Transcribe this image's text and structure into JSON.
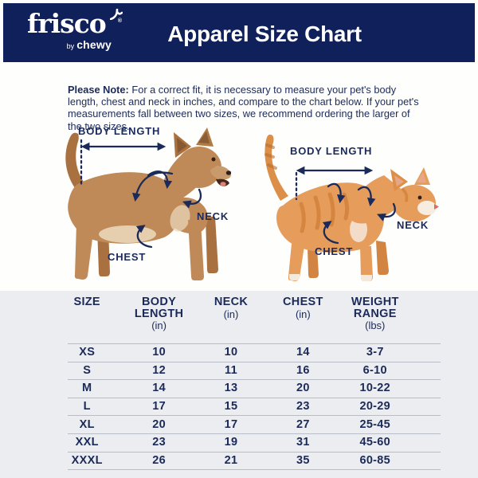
{
  "brand": {
    "logo_text": "frisco",
    "registered_mark": "®",
    "byline_prefix": "by",
    "byline_brand": "chewy"
  },
  "header": {
    "title": "Apparel Size Chart"
  },
  "note": {
    "label": "Please Note:",
    "text": " For a correct fit, it is necessary to measure your pet's body length, chest and neck in inches, and compare to the chart below. If your pet's measurements fall between two sizes, we recommend ordering the larger of the two sizes."
  },
  "diagrams": {
    "dog": {
      "animal": "dog",
      "body_length_label": "BODY LENGTH",
      "neck_label": "NECK",
      "chest_label": "CHEST"
    },
    "cat": {
      "animal": "cat",
      "body_length_label": "BODY LENGTH",
      "neck_label": "NECK",
      "chest_label": "CHEST"
    }
  },
  "size_chart": {
    "columns": [
      {
        "label": "SIZE",
        "unit": ""
      },
      {
        "label": "BODY LENGTH",
        "unit": "(in)"
      },
      {
        "label": "NECK",
        "unit": "(in)"
      },
      {
        "label": "CHEST",
        "unit": "(in)"
      },
      {
        "label": "WEIGHT RANGE",
        "unit": "(lbs)"
      }
    ],
    "rows": [
      {
        "size": "XS",
        "body_length": "10",
        "neck": "10",
        "chest": "14",
        "weight_range": "3-7"
      },
      {
        "size": "S",
        "body_length": "12",
        "neck": "11",
        "chest": "16",
        "weight_range": "6-10"
      },
      {
        "size": "M",
        "body_length": "14",
        "neck": "13",
        "chest": "20",
        "weight_range": "10-22"
      },
      {
        "size": "L",
        "body_length": "17",
        "neck": "15",
        "chest": "23",
        "weight_range": "20-29"
      },
      {
        "size": "XL",
        "body_length": "20",
        "neck": "17",
        "chest": "27",
        "weight_range": "25-45"
      },
      {
        "size": "XXL",
        "body_length": "23",
        "neck": "19",
        "chest": "31",
        "weight_range": "45-60"
      },
      {
        "size": "XXXL",
        "body_length": "26",
        "neck": "21",
        "chest": "35",
        "weight_range": "60-85"
      }
    ]
  },
  "chart_data": {
    "type": "table",
    "title": "Apparel Size Chart",
    "columns": [
      "SIZE",
      "BODY LENGTH (in)",
      "NECK (in)",
      "CHEST (in)",
      "WEIGHT RANGE (lbs)"
    ],
    "rows": [
      [
        "XS",
        "10",
        "10",
        "14",
        "3-7"
      ],
      [
        "S",
        "12",
        "11",
        "16",
        "6-10"
      ],
      [
        "M",
        "14",
        "13",
        "20",
        "10-22"
      ],
      [
        "L",
        "17",
        "15",
        "23",
        "20-29"
      ],
      [
        "XL",
        "20",
        "17",
        "27",
        "25-45"
      ],
      [
        "XXL",
        "23",
        "19",
        "31",
        "45-60"
      ],
      [
        "XXXL",
        "26",
        "21",
        "35",
        "60-85"
      ]
    ]
  },
  "colors": {
    "header_background": "#10205A",
    "text_navy": "#1B2A59",
    "panel_background": "#ECEDF1",
    "row_line": "#B9BDC7",
    "white": "#FFFFFF"
  }
}
